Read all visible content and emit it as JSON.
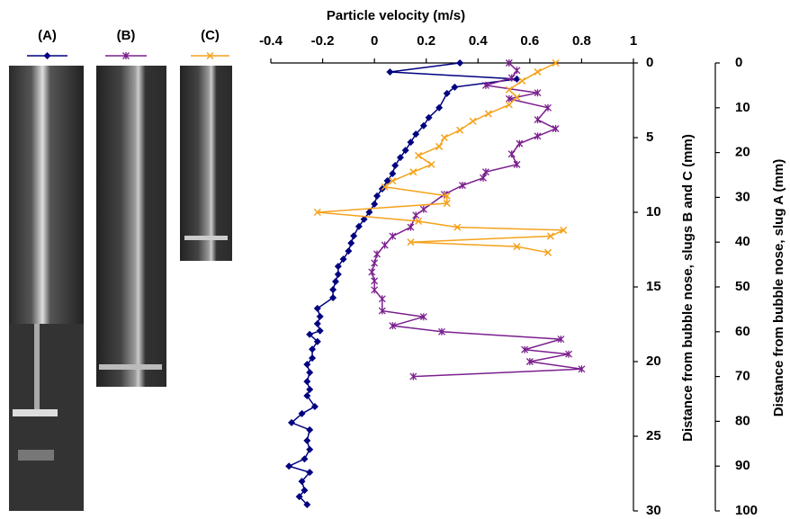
{
  "chart_data": {
    "type": "line",
    "title": "Particle velocity (m/s)",
    "y_label": "Distance from bubble nose, slugs B and C (mm)",
    "y2_label": "Distance from bubble nose, slug A (mm)",
    "xlim": [
      -0.4,
      1
    ],
    "xticks": [
      -0.4,
      -0.2,
      0,
      0.2,
      0.4,
      0.6,
      0.8,
      1
    ],
    "ylim": [
      0,
      30
    ],
    "yticks": [
      0,
      5,
      10,
      15,
      20,
      25,
      30
    ],
    "y2lim": [
      0,
      100
    ],
    "y2ticks": [
      0,
      10,
      20,
      30,
      40,
      50,
      60,
      70,
      80,
      90,
      100
    ],
    "y_inverted": true,
    "series": [
      {
        "name": "(A)",
        "color": "#000080",
        "marker": "diamond",
        "axis": "y2",
        "x": [
          0.33,
          0.06,
          0.55,
          0.31,
          0.28,
          0.25,
          0.21,
          0.19,
          0.16,
          0.14,
          0.12,
          0.1,
          0.08,
          0.07,
          0.05,
          0.03,
          0.01,
          0,
          -0.02,
          -0.04,
          -0.06,
          -0.08,
          -0.09,
          -0.1,
          -0.12,
          -0.14,
          -0.14,
          -0.15,
          -0.16,
          -0.16,
          -0.22,
          -0.21,
          -0.22,
          -0.21,
          -0.25,
          -0.22,
          -0.24,
          -0.24,
          -0.26,
          -0.25,
          -0.26,
          -0.25,
          -0.26,
          -0.23,
          -0.28,
          -0.32,
          -0.25,
          -0.26,
          -0.25,
          -0.27,
          -0.33,
          -0.25,
          -0.28,
          -0.27,
          -0.29,
          -0.26
        ],
        "values": [
          0,
          2,
          3.6,
          5.4,
          6.8,
          10,
          12.2,
          14,
          15.9,
          17.7,
          19.5,
          21.1,
          22.9,
          24.7,
          26.3,
          28.1,
          29.7,
          31.5,
          33.3,
          34.9,
          36.5,
          38.6,
          40.2,
          42,
          43.8,
          45.4,
          47.2,
          48.8,
          50.6,
          52.4,
          54.8,
          56.6,
          58.2,
          59.8,
          60.6,
          62.2,
          63.9,
          65.9,
          67.3,
          69.1,
          71.1,
          72.9,
          74.3,
          76.7,
          78.3,
          80.3,
          81.9,
          84.3,
          86.3,
          88.4,
          90,
          91.4,
          93.4,
          95.4,
          96.8,
          98.6
        ]
      },
      {
        "name": "(B)",
        "color": "#7b1f8e",
        "marker": "star",
        "x": [
          0.52,
          0.55,
          0.53,
          0.43,
          0.63,
          0.52,
          0.67,
          0.63,
          0.7,
          0.63,
          0.56,
          0.53,
          0.55,
          0.43,
          0.42,
          0.34,
          0.27,
          0.19,
          0.16,
          0.14,
          0.07,
          0.04,
          0.01,
          0,
          -0.01,
          0,
          0,
          0.03,
          0.03,
          0.19,
          0.07,
          0.26,
          0.72,
          0.58,
          0.75,
          0.6,
          0.8,
          0.15
        ],
        "values": [
          0,
          0.5,
          1,
          1.5,
          2,
          2.4,
          3,
          3.8,
          4.4,
          4.9,
          5.4,
          6.1,
          6.8,
          7.3,
          7.7,
          8.2,
          8.8,
          9.8,
          10.2,
          11,
          11.6,
          12.2,
          12.8,
          13.4,
          14,
          14.6,
          15.2,
          15.8,
          16.6,
          17,
          17.6,
          18,
          18.5,
          19.2,
          19.5,
          20,
          20.5,
          21
        ]
      },
      {
        "name": "(C)",
        "color": "#f5a21b",
        "marker": "x",
        "x": [
          0.7,
          0.63,
          0.57,
          0.52,
          0.55,
          0.52,
          0.44,
          0.38,
          0.33,
          0.27,
          0.25,
          0.17,
          0.22,
          0.15,
          0.07,
          0.04,
          0.28,
          0.28,
          -0.22,
          0.17,
          0.32,
          0.73,
          0.68,
          0.14,
          0.55,
          0.67
        ],
        "values": [
          0,
          0.6,
          1.2,
          1.8,
          2.3,
          2.8,
          3.4,
          3.9,
          4.5,
          5,
          5.6,
          6.2,
          6.8,
          7.3,
          7.9,
          8.3,
          8.9,
          9.4,
          10,
          10.6,
          11,
          11.2,
          11.6,
          12,
          12.3,
          12.7
        ]
      }
    ]
  }
}
